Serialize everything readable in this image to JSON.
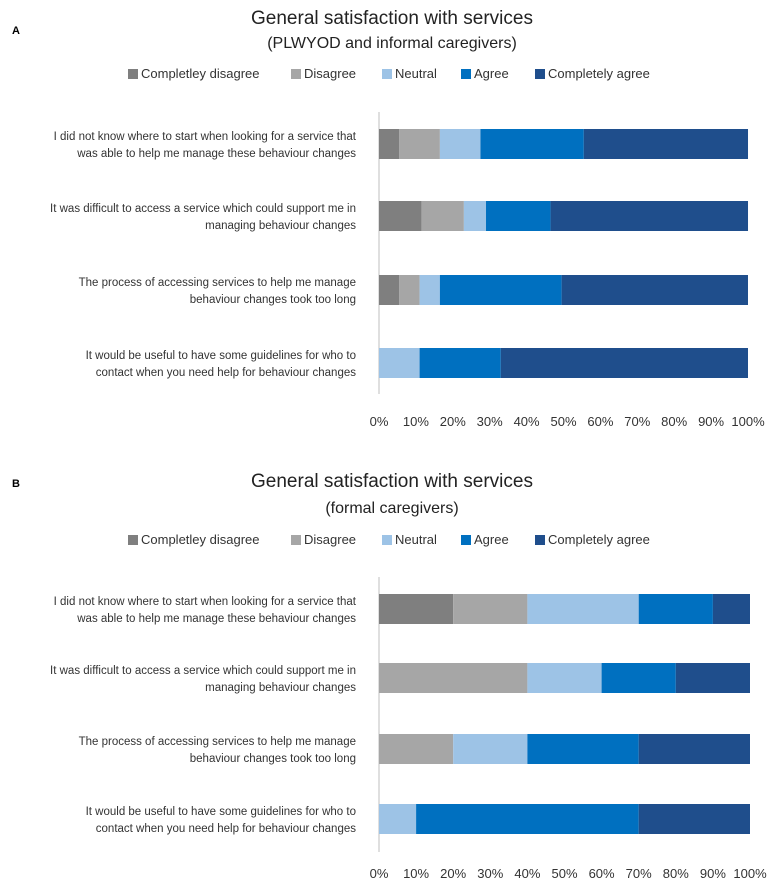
{
  "colors": {
    "Completley disagree": "#7f7f7f",
    "Disagree": "#a6a6a6",
    "Neutral": "#9dc3e6",
    "Agree": "#0070c0",
    "Completely agree": "#1f4e8c"
  },
  "chart_data": [
    {
      "type": "bar",
      "orientation": "horizontal-stacked-percent",
      "panel": "A",
      "title": "General satisfaction with services",
      "subtitle": "(PLWYOD and informal caregivers)",
      "legend": [
        "Completley disagree",
        "Disagree",
        "Neutral",
        "Agree",
        "Completely agree"
      ],
      "categories": [
        [
          "I did not know where to start when looking for a service that",
          "was able to help me manage these behaviour changes"
        ],
        [
          "It was difficult to access a service which could support me in",
          "managing behaviour changes"
        ],
        [
          "The process of accessing services to help me manage",
          "behaviour changes took too long"
        ],
        [
          "It would be useful to have some guidelines for who to",
          "contact when you need help for behaviour changes"
        ]
      ],
      "series": [
        {
          "name": "Completley disagree",
          "values": [
            5.5,
            11.5,
            5.5,
            0
          ]
        },
        {
          "name": "Disagree",
          "values": [
            11,
            11.5,
            5.5,
            0
          ]
        },
        {
          "name": "Neutral",
          "values": [
            11,
            6,
            5.5,
            11
          ]
        },
        {
          "name": "Agree",
          "values": [
            28,
            17.5,
            33,
            22
          ]
        },
        {
          "name": "Completely agree",
          "values": [
            44.5,
            53.5,
            50.5,
            67
          ]
        }
      ],
      "xticks": [
        "0%",
        "10%",
        "20%",
        "30%",
        "40%",
        "50%",
        "60%",
        "70%",
        "80%",
        "90%",
        "100%"
      ],
      "xlim": [
        0,
        100
      ]
    },
    {
      "type": "bar",
      "orientation": "horizontal-stacked-percent",
      "panel": "B",
      "title": "General satisfaction with services",
      "subtitle": "(formal caregivers)",
      "legend": [
        "Completley disagree",
        "Disagree",
        "Neutral",
        "Agree",
        "Completely agree"
      ],
      "categories": [
        [
          "I did not know where to start when looking for a service that",
          "was able to help me manage these behaviour changes"
        ],
        [
          "It was difficult to access a service which could support me in",
          "managing behaviour changes"
        ],
        [
          "The process of accessing services to help me manage",
          "behaviour changes took too long"
        ],
        [
          "It would be useful to have some guidelines for who to",
          "contact when you need help for behaviour changes"
        ]
      ],
      "series": [
        {
          "name": "Completley disagree",
          "values": [
            20,
            0,
            0,
            0
          ]
        },
        {
          "name": "Disagree",
          "values": [
            20,
            40,
            20,
            0
          ]
        },
        {
          "name": "Neutral",
          "values": [
            30,
            20,
            20,
            10
          ]
        },
        {
          "name": "Agree",
          "values": [
            20,
            20,
            30,
            60
          ]
        },
        {
          "name": "Completely agree",
          "values": [
            10,
            20,
            30,
            30
          ]
        }
      ],
      "xticks": [
        "0%",
        "10%",
        "20%",
        "30%",
        "40%",
        "50%",
        "60%",
        "70%",
        "80%",
        "90%",
        "100%"
      ],
      "xlim": [
        0,
        100
      ]
    }
  ]
}
